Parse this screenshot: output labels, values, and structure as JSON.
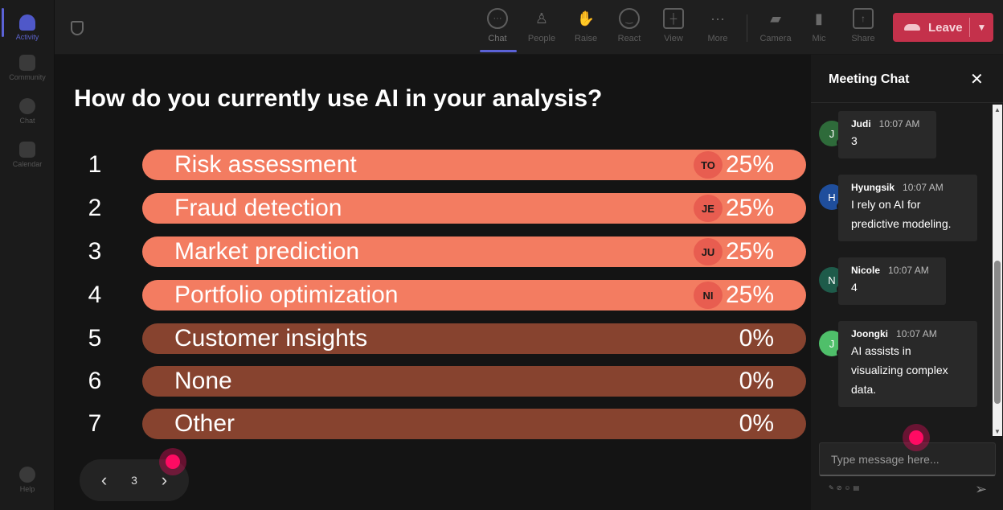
{
  "rail": {
    "items": [
      {
        "label": "Activity",
        "active": true
      },
      {
        "label": "Community"
      },
      {
        "label": "Chat"
      },
      {
        "label": "Calendar"
      },
      {
        "label": "Help"
      }
    ]
  },
  "toolbar": {
    "buttons": [
      {
        "label": "Chat",
        "icon": "chat-icon"
      },
      {
        "label": "People",
        "icon": "people-icon"
      },
      {
        "label": "Raise",
        "icon": "hand-icon"
      },
      {
        "label": "React",
        "icon": "smile-icon"
      },
      {
        "label": "View",
        "icon": "grid-icon"
      },
      {
        "label": "More",
        "icon": "more-icon"
      },
      {
        "label": "Camera",
        "icon": "camera-off-icon"
      },
      {
        "label": "Mic",
        "icon": "mic-icon"
      },
      {
        "label": "Share",
        "icon": "share-icon"
      }
    ],
    "leave_label": "Leave",
    "leave_color": "#c4314b"
  },
  "poll": {
    "title": "How do you currently use AI in your analysis?",
    "options": [
      {
        "num": "1",
        "label": "Risk assessment",
        "pct": "25%",
        "voter": "TO"
      },
      {
        "num": "2",
        "label": "Fraud detection",
        "pct": "25%",
        "voter": "JE"
      },
      {
        "num": "3",
        "label": "Market prediction",
        "pct": "25%",
        "voter": "JU"
      },
      {
        "num": "4",
        "label": "Portfolio optimization",
        "pct": "25%",
        "voter": "NI"
      },
      {
        "num": "5",
        "label": "Customer insights",
        "pct": "0%",
        "voter": ""
      },
      {
        "num": "6",
        "label": "None",
        "pct": "0%",
        "voter": ""
      },
      {
        "num": "7",
        "label": "Other",
        "pct": "0%",
        "voter": ""
      }
    ],
    "colors": {
      "active": "#f37c61",
      "inactive": "#87432f"
    }
  },
  "pager": {
    "page": "3"
  },
  "chat": {
    "title": "Meeting Chat",
    "messages": [
      {
        "initial": "J",
        "name": "Judi",
        "time": "10:07 AM",
        "text": "3",
        "color": "#2e6b3a"
      },
      {
        "initial": "H",
        "name": "Hyungsik",
        "time": "10:07 AM",
        "text": "I rely on AI for predictive modeling.",
        "color": "#1f4e9c"
      },
      {
        "initial": "N",
        "name": "Nicole",
        "time": "10:07 AM",
        "text": "4",
        "color": "#1e5b4a"
      },
      {
        "initial": "J",
        "name": "Joongki",
        "time": "10:07 AM",
        "text": "AI assists in visualizing complex data.",
        "color": "#4fbf6a"
      }
    ],
    "compose_placeholder": "Type message here..."
  }
}
